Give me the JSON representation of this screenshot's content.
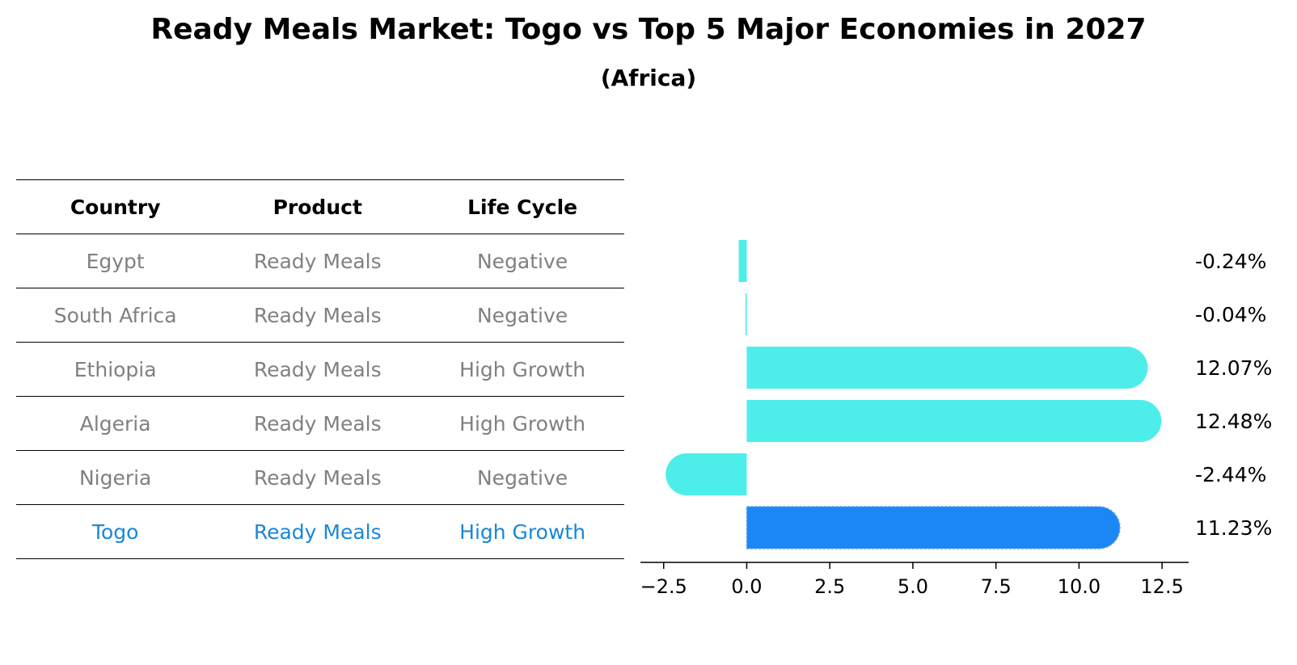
{
  "title": "Ready Meals Market: Togo vs Top 5 Major Economies in 2027",
  "subtitle": "(Africa)",
  "table": {
    "headers": [
      "Country",
      "Product",
      "Life Cycle"
    ],
    "rows": [
      {
        "country": "Egypt",
        "product": "Ready Meals",
        "life_cycle": "Negative"
      },
      {
        "country": "South Africa",
        "product": "Ready Meals",
        "life_cycle": "Negative"
      },
      {
        "country": "Ethiopia",
        "product": "Ready Meals",
        "life_cycle": "High Growth"
      },
      {
        "country": "Algeria",
        "product": "Ready Meals",
        "life_cycle": "High Growth"
      },
      {
        "country": "Nigeria",
        "product": "Ready Meals",
        "life_cycle": "Negative"
      },
      {
        "country": "Togo",
        "product": "Ready Meals",
        "life_cycle": "High Growth"
      }
    ]
  },
  "colors": {
    "bar": "#4deee9",
    "highlight_bar": "#1a87f5",
    "highlight_text": "#1a87d6",
    "muted_text": "#808080"
  },
  "chart_data": {
    "type": "bar",
    "orientation": "horizontal",
    "categories": [
      "Egypt",
      "South Africa",
      "Ethiopia",
      "Algeria",
      "Nigeria",
      "Togo"
    ],
    "values": [
      -0.24,
      -0.04,
      12.07,
      12.48,
      -2.44,
      11.23
    ],
    "value_labels": [
      "-0.24%",
      "-0.04%",
      "12.07%",
      "12.48%",
      "-2.44%",
      "11.23%"
    ],
    "highlight": "Togo",
    "xlim": [
      -3.2,
      13.3
    ],
    "xticks": [
      -2.5,
      0.0,
      2.5,
      5.0,
      7.5,
      10.0,
      12.5
    ],
    "xtick_labels": [
      "−2.5",
      "0.0",
      "2.5",
      "5.0",
      "7.5",
      "10.0",
      "12.5"
    ]
  }
}
